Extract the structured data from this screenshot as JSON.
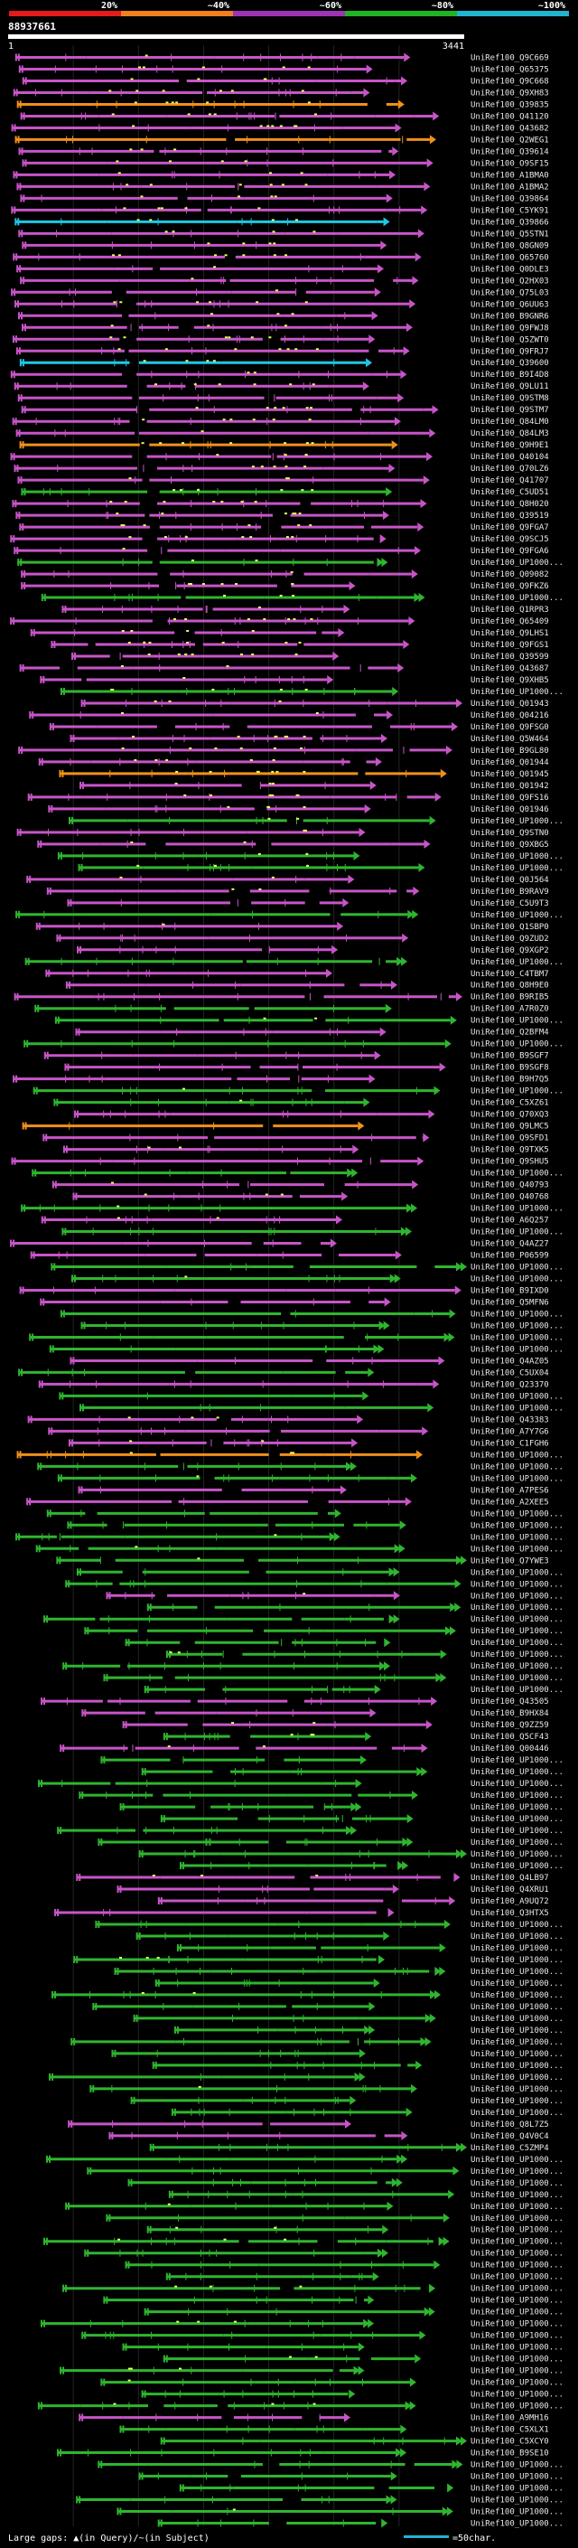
{
  "query": {
    "name": "88937661",
    "start": "1",
    "end": "3441"
  },
  "identity_scale": [
    {
      "label": "20%",
      "color": "#e21b1b"
    },
    {
      "label": "~40%",
      "color": "#f07f1c"
    },
    {
      "label": "~60%",
      "color": "#9e34b3"
    },
    {
      "label": "~80%",
      "color": "#21b321"
    },
    {
      "label": "~100%",
      "color": "#21b3d0"
    }
  ],
  "colors": {
    "background": "#000000",
    "grid": "#242424",
    "ruler": "#ffffff",
    "label": "#e8e8e8",
    "pink": "#c755c7",
    "green": "#2fb52f",
    "orange": "#f0901c",
    "cyan": "#1ec8e6",
    "dot": "#e6ff5a"
  },
  "footer": {
    "legend_text": "Large gaps: ▲(in Query)/~(in Subject)",
    "scale_text": "=50char."
  },
  "hits": [
    {
      "label": "UniRef100_Q9C669",
      "c": "p"
    },
    {
      "label": "UniRef100_Q65375",
      "c": "p"
    },
    {
      "label": "UniRef100_Q9C668",
      "c": "p"
    },
    {
      "label": "UniRef100_Q9XH83",
      "c": "p"
    },
    {
      "label": "UniRef100_Q39835",
      "c": "o"
    },
    {
      "label": "UniRef100_Q41120",
      "c": "p"
    },
    {
      "label": "UniRef100_Q43682",
      "c": "p"
    },
    {
      "label": "UniRef100_Q2WEG1",
      "c": "o"
    },
    {
      "label": "UniRef100_Q39614",
      "c": "p"
    },
    {
      "label": "UniRef100_O9SF15",
      "c": "p"
    },
    {
      "label": "UniRef100_A1BMA0",
      "c": "p"
    },
    {
      "label": "UniRef100_A1BMA2",
      "c": "p"
    },
    {
      "label": "UniRef100_Q39864",
      "c": "p"
    },
    {
      "label": "UniRef100_C5YK91",
      "c": "p"
    },
    {
      "label": "UniRef100_Q39866",
      "c": "c"
    },
    {
      "label": "UniRef100_Q5STN1",
      "c": "p"
    },
    {
      "label": "UniRef100_Q8GN09",
      "c": "p"
    },
    {
      "label": "UniRef100_Q65760",
      "c": "p"
    },
    {
      "label": "UniRef100_Q0DLE3",
      "c": "p"
    },
    {
      "label": "UniRef100_Q2HX03",
      "c": "p"
    },
    {
      "label": "UniRef100_Q75L03",
      "c": "p"
    },
    {
      "label": "UniRef100_Q6UU63",
      "c": "p"
    },
    {
      "label": "UniRef100_B9GNR6",
      "c": "p"
    },
    {
      "label": "UniRef100_Q9FWJ8",
      "c": "p"
    },
    {
      "label": "UniRef100_Q5ZWT0",
      "c": "p"
    },
    {
      "label": "UniRef100_Q9FRJ7",
      "c": "p"
    },
    {
      "label": "UniRef100_Q39600",
      "c": "c"
    },
    {
      "label": "UniRef100_B9I4D8",
      "c": "p"
    },
    {
      "label": "UniRef100_Q9LU11",
      "c": "p"
    },
    {
      "label": "UniRef100_Q9STM8",
      "c": "p"
    },
    {
      "label": "UniRef100_Q9STM7",
      "c": "p"
    },
    {
      "label": "UniRef100_Q84LM0",
      "c": "p"
    },
    {
      "label": "UniRef100_Q84LM3",
      "c": "p"
    },
    {
      "label": "UniRef100_Q9H9E1",
      "c": "o"
    },
    {
      "label": "UniRef100_Q40104",
      "c": "p"
    },
    {
      "label": "UniRef100_Q70LZ6",
      "c": "p"
    },
    {
      "label": "UniRef100_Q41707",
      "c": "p"
    },
    {
      "label": "UniRef100_C5UD51",
      "c": "g"
    },
    {
      "label": "UniRef100_Q8H020",
      "c": "p"
    },
    {
      "label": "UniRef100_Q39519",
      "c": "p"
    },
    {
      "label": "UniRef100_Q9FGA7",
      "c": "p"
    },
    {
      "label": "UniRef100_Q9SCJ5",
      "c": "p"
    },
    {
      "label": "UniRef100_Q9FGA6",
      "c": "p"
    },
    {
      "label": "UniRef100_UP1000...",
      "c": "g"
    },
    {
      "label": "UniRef100_Q09082",
      "c": "p"
    },
    {
      "label": "UniRef100_Q9FKZ6",
      "c": "p"
    },
    {
      "label": "UniRef100_UP1000...",
      "c": "g"
    },
    {
      "label": "UniRef100_Q1RPR3",
      "c": "p"
    },
    {
      "label": "UniRef100_Q65409",
      "c": "p"
    },
    {
      "label": "UniRef100_Q9LHS1",
      "c": "p"
    },
    {
      "label": "UniRef100_Q9FGS1",
      "c": "p"
    },
    {
      "label": "UniRef100_Q39599",
      "c": "p"
    },
    {
      "label": "UniRef100_Q43687",
      "c": "p"
    },
    {
      "label": "UniRef100_Q9XHB5",
      "c": "p"
    },
    {
      "label": "UniRef100_UP1000...",
      "c": "g"
    },
    {
      "label": "UniRef100_Q01943",
      "c": "p"
    },
    {
      "label": "UniRef100_Q04216",
      "c": "p"
    },
    {
      "label": "UniRef100_Q9FSG0",
      "c": "p"
    },
    {
      "label": "UniRef100_Q5W464",
      "c": "p"
    },
    {
      "label": "UniRef100_B9GL80",
      "c": "p"
    },
    {
      "label": "UniRef100_Q01944",
      "c": "p"
    },
    {
      "label": "UniRef100_Q01945",
      "c": "o"
    },
    {
      "label": "UniRef100_Q01942",
      "c": "p"
    },
    {
      "label": "UniRef100_Q9FS16",
      "c": "p"
    },
    {
      "label": "UniRef100_Q01946",
      "c": "p"
    },
    {
      "label": "UniRef100_UP1000...",
      "c": "g"
    },
    {
      "label": "UniRef100_Q9STN0",
      "c": "p"
    },
    {
      "label": "UniRef100_Q9XBG5",
      "c": "p"
    },
    {
      "label": "UniRef100_UP1000...",
      "c": "g"
    },
    {
      "label": "UniRef100_UP1000...",
      "c": "g"
    },
    {
      "label": "UniRef100_Q0J564",
      "c": "p"
    },
    {
      "label": "UniRef100_B9RAV9",
      "c": "p"
    },
    {
      "label": "UniRef100_C5U9T3",
      "c": "p"
    },
    {
      "label": "UniRef100_UP1000...",
      "c": "g"
    },
    {
      "label": "UniRef100_Q1SBP0",
      "c": "p"
    },
    {
      "label": "UniRef100_Q9ZUD2",
      "c": "p"
    },
    {
      "label": "UniRef100_Q9XGP2",
      "c": "p"
    },
    {
      "label": "UniRef100_UP1000...",
      "c": "g"
    },
    {
      "label": "UniRef100_C4TBM7",
      "c": "p"
    },
    {
      "label": "UniRef100_Q8H9E0",
      "c": "p"
    },
    {
      "label": "UniRef100_B9RIB5",
      "c": "p"
    },
    {
      "label": "UniRef100_A7R0Z0",
      "c": "g"
    },
    {
      "label": "UniRef100_UP1000...",
      "c": "g"
    },
    {
      "label": "UniRef100_Q2BFM4",
      "c": "p"
    },
    {
      "label": "UniRef100_UP1000...",
      "c": "g"
    },
    {
      "label": "UniRef100_B9SGF7",
      "c": "p"
    },
    {
      "label": "UniRef100_B9SGF8",
      "c": "p"
    },
    {
      "label": "UniRef100_B9H7Q5",
      "c": "p"
    },
    {
      "label": "UniRef100_UP1000...",
      "c": "g"
    },
    {
      "label": "UniRef100_C5XZ61",
      "c": "g"
    },
    {
      "label": "UniRef100_Q70XQ3",
      "c": "p"
    },
    {
      "label": "UniRef100_Q9LMC5",
      "c": "o"
    },
    {
      "label": "UniRef100_Q9SFD1",
      "c": "p"
    },
    {
      "label": "UniRef100_Q9TXK5",
      "c": "p"
    },
    {
      "label": "UniRef100_Q9SHU5",
      "c": "p"
    },
    {
      "label": "UniRef100_UP1000...",
      "c": "g"
    },
    {
      "label": "UniRef100_Q40793",
      "c": "p"
    },
    {
      "label": "UniRef100_Q40768",
      "c": "p"
    },
    {
      "label": "UniRef100_UP1000...",
      "c": "g"
    },
    {
      "label": "UniRef100_A6Q257",
      "c": "p"
    },
    {
      "label": "UniRef100_UP1000...",
      "c": "g"
    },
    {
      "label": "UniRef100_Q4AZ27",
      "c": "p"
    },
    {
      "label": "UniRef100_P06599",
      "c": "p"
    },
    {
      "label": "UniRef100_UP1000...",
      "c": "g"
    },
    {
      "label": "UniRef100_UP1000...",
      "c": "g"
    },
    {
      "label": "UniRef100_B9IXD0",
      "c": "p"
    },
    {
      "label": "UniRef100_Q5MFN6",
      "c": "p"
    },
    {
      "label": "UniRef100_UP1000...",
      "c": "g"
    },
    {
      "label": "UniRef100_UP1000...",
      "c": "g"
    },
    {
      "label": "UniRef100_UP1000...",
      "c": "g"
    },
    {
      "label": "UniRef100_UP1000...",
      "c": "g"
    },
    {
      "label": "UniRef100_Q4AZ05",
      "c": "p"
    },
    {
      "label": "UniRef100_C5UX04",
      "c": "g"
    },
    {
      "label": "UniRef100_Q23370",
      "c": "p"
    },
    {
      "label": "UniRef100_UP1000...",
      "c": "g"
    },
    {
      "label": "UniRef100_UP1000...",
      "c": "g"
    },
    {
      "label": "UniRef100_Q43383",
      "c": "p"
    },
    {
      "label": "UniRef100_A7Y7G6",
      "c": "p"
    },
    {
      "label": "UniRef100_C1FGH6",
      "c": "p"
    },
    {
      "label": "UniRef100_UP1000...",
      "c": "o"
    },
    {
      "label": "UniRef100_UP1000...",
      "c": "g"
    },
    {
      "label": "UniRef100_UP1000...",
      "c": "g"
    },
    {
      "label": "UniRef100_A7PES6",
      "c": "p"
    },
    {
      "label": "UniRef100_A2XEE5",
      "c": "p"
    },
    {
      "label": "UniRef100_UP1000...",
      "c": "g"
    },
    {
      "label": "UniRef100_UP1000...",
      "c": "g"
    },
    {
      "label": "UniRef100_UP1000...",
      "c": "g"
    },
    {
      "label": "UniRef100_UP1000...",
      "c": "g"
    },
    {
      "label": "UniRef100_Q7YWE3",
      "c": "g"
    },
    {
      "label": "UniRef100_UP1000...",
      "c": "g"
    },
    {
      "label": "UniRef100_UP1000...",
      "c": "g"
    },
    {
      "label": "UniRef100_UP1000...",
      "c": "p"
    },
    {
      "label": "UniRef100_UP1000...",
      "c": "g"
    },
    {
      "label": "UniRef100_UP1000...",
      "c": "g"
    },
    {
      "label": "UniRef100_UP1000...",
      "c": "g"
    },
    {
      "label": "UniRef100_UP1000...",
      "c": "g"
    },
    {
      "label": "UniRef100_UP1000...",
      "c": "g"
    },
    {
      "label": "UniRef100_UP1000...",
      "c": "g"
    },
    {
      "label": "UniRef100_UP1000...",
      "c": "g"
    },
    {
      "label": "UniRef100_UP1000...",
      "c": "g"
    },
    {
      "label": "UniRef100_Q43505",
      "c": "p"
    },
    {
      "label": "UniRef100_B9HX84",
      "c": "p"
    },
    {
      "label": "UniRef100_Q9ZZ59",
      "c": "p"
    },
    {
      "label": "UniRef100_Q5CF43",
      "c": "g"
    },
    {
      "label": "UniRef100_Q00446",
      "c": "p"
    },
    {
      "label": "UniRef100_UP1000...",
      "c": "g"
    },
    {
      "label": "UniRef100_UP1000...",
      "c": "g"
    },
    {
      "label": "UniRef100_UP1000...",
      "c": "g"
    },
    {
      "label": "UniRef100_UP1000...",
      "c": "g"
    },
    {
      "label": "UniRef100_UP1000...",
      "c": "g"
    },
    {
      "label": "UniRef100_UP1000...",
      "c": "g"
    },
    {
      "label": "UniRef100_UP1000...",
      "c": "g"
    },
    {
      "label": "UniRef100_UP1000...",
      "c": "g"
    },
    {
      "label": "UniRef100_UP1000...",
      "c": "g"
    },
    {
      "label": "UniRef100_UP1000...",
      "c": "g"
    },
    {
      "label": "UniRef100_Q4LB97",
      "c": "p"
    },
    {
      "label": "UniRef100_Q4XRU1",
      "c": "p"
    },
    {
      "label": "UniRef100_A9UQ72",
      "c": "p"
    },
    {
      "label": "UniRef100_Q3HTX5",
      "c": "p"
    },
    {
      "label": "UniRef100_UP1000...",
      "c": "g"
    },
    {
      "label": "UniRef100_UP1000...",
      "c": "g"
    },
    {
      "label": "UniRef100_UP1000...",
      "c": "g"
    },
    {
      "label": "UniRef100_UP1000...",
      "c": "g"
    },
    {
      "label": "UniRef100_UP1000...",
      "c": "g"
    },
    {
      "label": "UniRef100_UP1000...",
      "c": "g"
    },
    {
      "label": "UniRef100_UP1000...",
      "c": "g"
    },
    {
      "label": "UniRef100_UP1000...",
      "c": "g"
    },
    {
      "label": "UniRef100_UP1000...",
      "c": "g"
    },
    {
      "label": "UniRef100_UP1000...",
      "c": "g"
    },
    {
      "label": "UniRef100_UP1000...",
      "c": "g"
    },
    {
      "label": "UniRef100_UP1000...",
      "c": "g"
    },
    {
      "label": "UniRef100_UP1000...",
      "c": "g"
    },
    {
      "label": "UniRef100_UP1000...",
      "c": "g"
    },
    {
      "label": "UniRef100_UP1000...",
      "c": "g"
    },
    {
      "label": "UniRef100_UP1000...",
      "c": "g"
    },
    {
      "label": "UniRef100_UP1000...",
      "c": "g"
    },
    {
      "label": "UniRef100_Q8L7Z5",
      "c": "p"
    },
    {
      "label": "UniRef100_Q4V0C4",
      "c": "p"
    },
    {
      "label": "UniRef100_C5ZMP4",
      "c": "g"
    },
    {
      "label": "UniRef100_UP1000...",
      "c": "g"
    },
    {
      "label": "UniRef100_UP1000...",
      "c": "g"
    },
    {
      "label": "UniRef100_UP1000...",
      "c": "g"
    },
    {
      "label": "UniRef100_UP1000...",
      "c": "g"
    },
    {
      "label": "UniRef100_UP1000...",
      "c": "g"
    },
    {
      "label": "UniRef100_UP1000...",
      "c": "g"
    },
    {
      "label": "UniRef100_UP1000...",
      "c": "g"
    },
    {
      "label": "UniRef100_UP1000...",
      "c": "g"
    },
    {
      "label": "UniRef100_UP1000...",
      "c": "g"
    },
    {
      "label": "UniRef100_UP1000...",
      "c": "g"
    },
    {
      "label": "UniRef100_UP1000...",
      "c": "g"
    },
    {
      "label": "UniRef100_UP1000...",
      "c": "g"
    },
    {
      "label": "UniRef100_UP1000...",
      "c": "g"
    },
    {
      "label": "UniRef100_UP1000...",
      "c": "g"
    },
    {
      "label": "UniRef100_UP1000...",
      "c": "g"
    },
    {
      "label": "UniRef100_UP1000...",
      "c": "g"
    },
    {
      "label": "UniRef100_UP1000...",
      "c": "g"
    },
    {
      "label": "UniRef100_UP1000...",
      "c": "g"
    },
    {
      "label": "UniRef100_UP1000...",
      "c": "g"
    },
    {
      "label": "UniRef100_UP1000...",
      "c": "g"
    },
    {
      "label": "UniRef100_UP1000...",
      "c": "g"
    },
    {
      "label": "UniRef100_UP1000...",
      "c": "g"
    },
    {
      "label": "UniRef100_A9MH16",
      "c": "p"
    },
    {
      "label": "UniRef100_C5XLX1",
      "c": "g"
    },
    {
      "label": "UniRef100_C5XCY0",
      "c": "g"
    },
    {
      "label": "UniRef100_B9SE10",
      "c": "g"
    },
    {
      "label": "UniRef100_UP1000...",
      "c": "g"
    },
    {
      "label": "UniRef100_UP1000...",
      "c": "g"
    },
    {
      "label": "UniRef100_UP1000...",
      "c": "g"
    },
    {
      "label": "UniRef100_UP1000...",
      "c": "g"
    },
    {
      "label": "UniRef100_UP1000...",
      "c": "g"
    },
    {
      "label": "UniRef100_UP1000...",
      "c": "g"
    }
  ]
}
